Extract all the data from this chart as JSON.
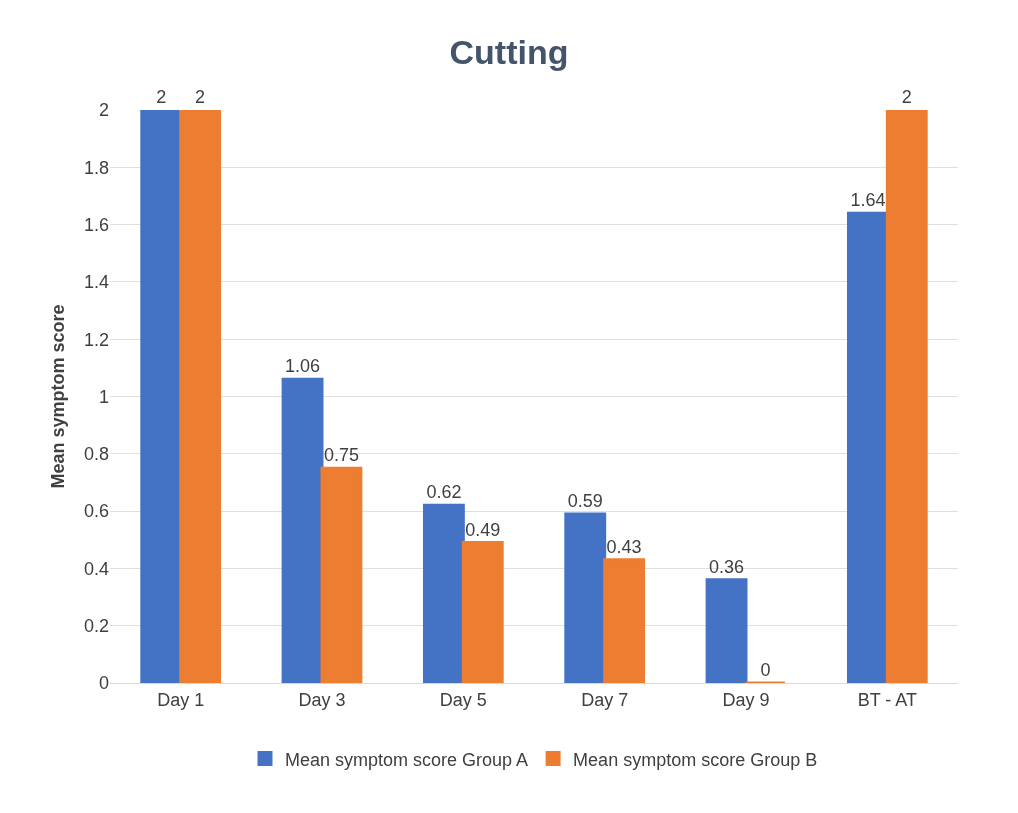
{
  "chart_data": {
    "type": "bar",
    "title": "Cutting",
    "ylabel": "Mean symptom score",
    "categories": [
      "Day 1",
      "Day 3",
      "Day 5",
      "Day 7",
      "Day 9",
      "BT - AT"
    ],
    "series": [
      {
        "name": "Mean symptom score Group A",
        "color": "#4472c4",
        "values": [
          2,
          1.06,
          0.62,
          0.59,
          0.36,
          1.64
        ]
      },
      {
        "name": "Mean symptom score Group B",
        "color": "#ed7d31",
        "values": [
          2,
          0.75,
          0.49,
          0.43,
          0,
          2
        ]
      }
    ],
    "ylim": [
      0,
      2
    ],
    "yticks": [
      0,
      0.2,
      0.4,
      0.6,
      0.8,
      1,
      1.2,
      1.4,
      1.6,
      1.8,
      2
    ],
    "grid": "y",
    "legend": "bottom",
    "data_labels": true
  }
}
